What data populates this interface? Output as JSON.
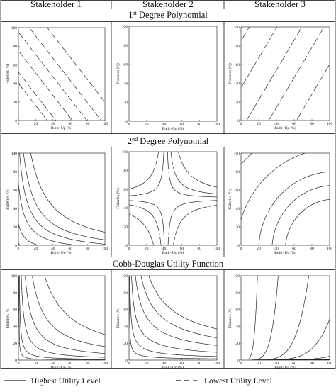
{
  "figure": {
    "columns": [
      "Stakeholder 1",
      "Stakeholder 2",
      "Stakeholder 3"
    ],
    "sections": [
      {
        "title_main": "1",
        "title_sup": "st",
        "title_rest": " Degree Polynomial"
      },
      {
        "title_main": "2",
        "title_sup": "nd",
        "title_rest": " Degree Polynomial"
      },
      {
        "title_main": "Cobb-Douglas Utility Function",
        "title_sup": "",
        "title_rest": ""
      }
    ],
    "legend": {
      "solid_label": "Highest Utility Level",
      "dashed_label": "Lowest Utility Level"
    }
  },
  "chart_data": {
    "type": "line",
    "chart_kind": "contour / indifference-curve grid",
    "xlabel": "Built−Up (%)",
    "ylabel": "Fisheries (%)",
    "xlim": [
      0,
      100
    ],
    "ylim": [
      0,
      100
    ],
    "xticks": [
      0,
      20,
      40,
      60,
      80,
      100
    ],
    "yticks": [
      0,
      20,
      40,
      60,
      80,
      100
    ],
    "grid": false,
    "legend_placement": "bottom",
    "line_color": "#222222",
    "level_styles": [
      "solid",
      "dotted",
      "dashed",
      "dotted",
      "dashed",
      "longdash"
    ],
    "panels": [
      {
        "row": 0,
        "col": 0,
        "model": "linear",
        "a": 1.2,
        "b": 1.0,
        "levels": [
          140,
          115,
          95,
          75,
          52,
          40
        ]
      },
      {
        "row": 0,
        "col": 1,
        "model": "linear",
        "a": 1.0,
        "b": 1.0,
        "levels": [
          150,
          130,
          110,
          90,
          70,
          45,
          25
        ]
      },
      {
        "row": 0,
        "col": 2,
        "model": "linear",
        "a": -1.6,
        "b": 1.0,
        "levels": [
          -100,
          -50,
          -10,
          35,
          85,
          130
        ]
      },
      {
        "row": 1,
        "col": 0,
        "model": "hyperbolic",
        "cx": -8,
        "cy": -8,
        "levels": [
          2400,
          1500,
          1000,
          600,
          250,
          80
        ]
      },
      {
        "row": 1,
        "col": 1,
        "model": "saddle",
        "cx": 42,
        "cy": 50,
        "levels": [
          700,
          280,
          90,
          -120,
          -420
        ]
      },
      {
        "row": 1,
        "col": 2,
        "model": "radial",
        "cx": 105,
        "cy": -5,
        "levels": [
          55,
          70,
          85,
          110,
          140
        ]
      },
      {
        "row": 2,
        "col": 0,
        "model": "cobb-douglas",
        "alpha": 0.5,
        "beta": 0.5,
        "levels": [
          55,
          40,
          28,
          18,
          10,
          5
        ]
      },
      {
        "row": 2,
        "col": 1,
        "model": "cobb-douglas",
        "alpha": 0.4,
        "beta": 0.6,
        "levels": [
          8,
          15,
          24,
          35,
          45,
          55
        ]
      },
      {
        "row": 2,
        "col": 2,
        "model": "cobb-douglas",
        "alpha": 0.85,
        "beta": -0.15,
        "levels": [
          50,
          40,
          28,
          20,
          12,
          6
        ]
      }
    ]
  }
}
